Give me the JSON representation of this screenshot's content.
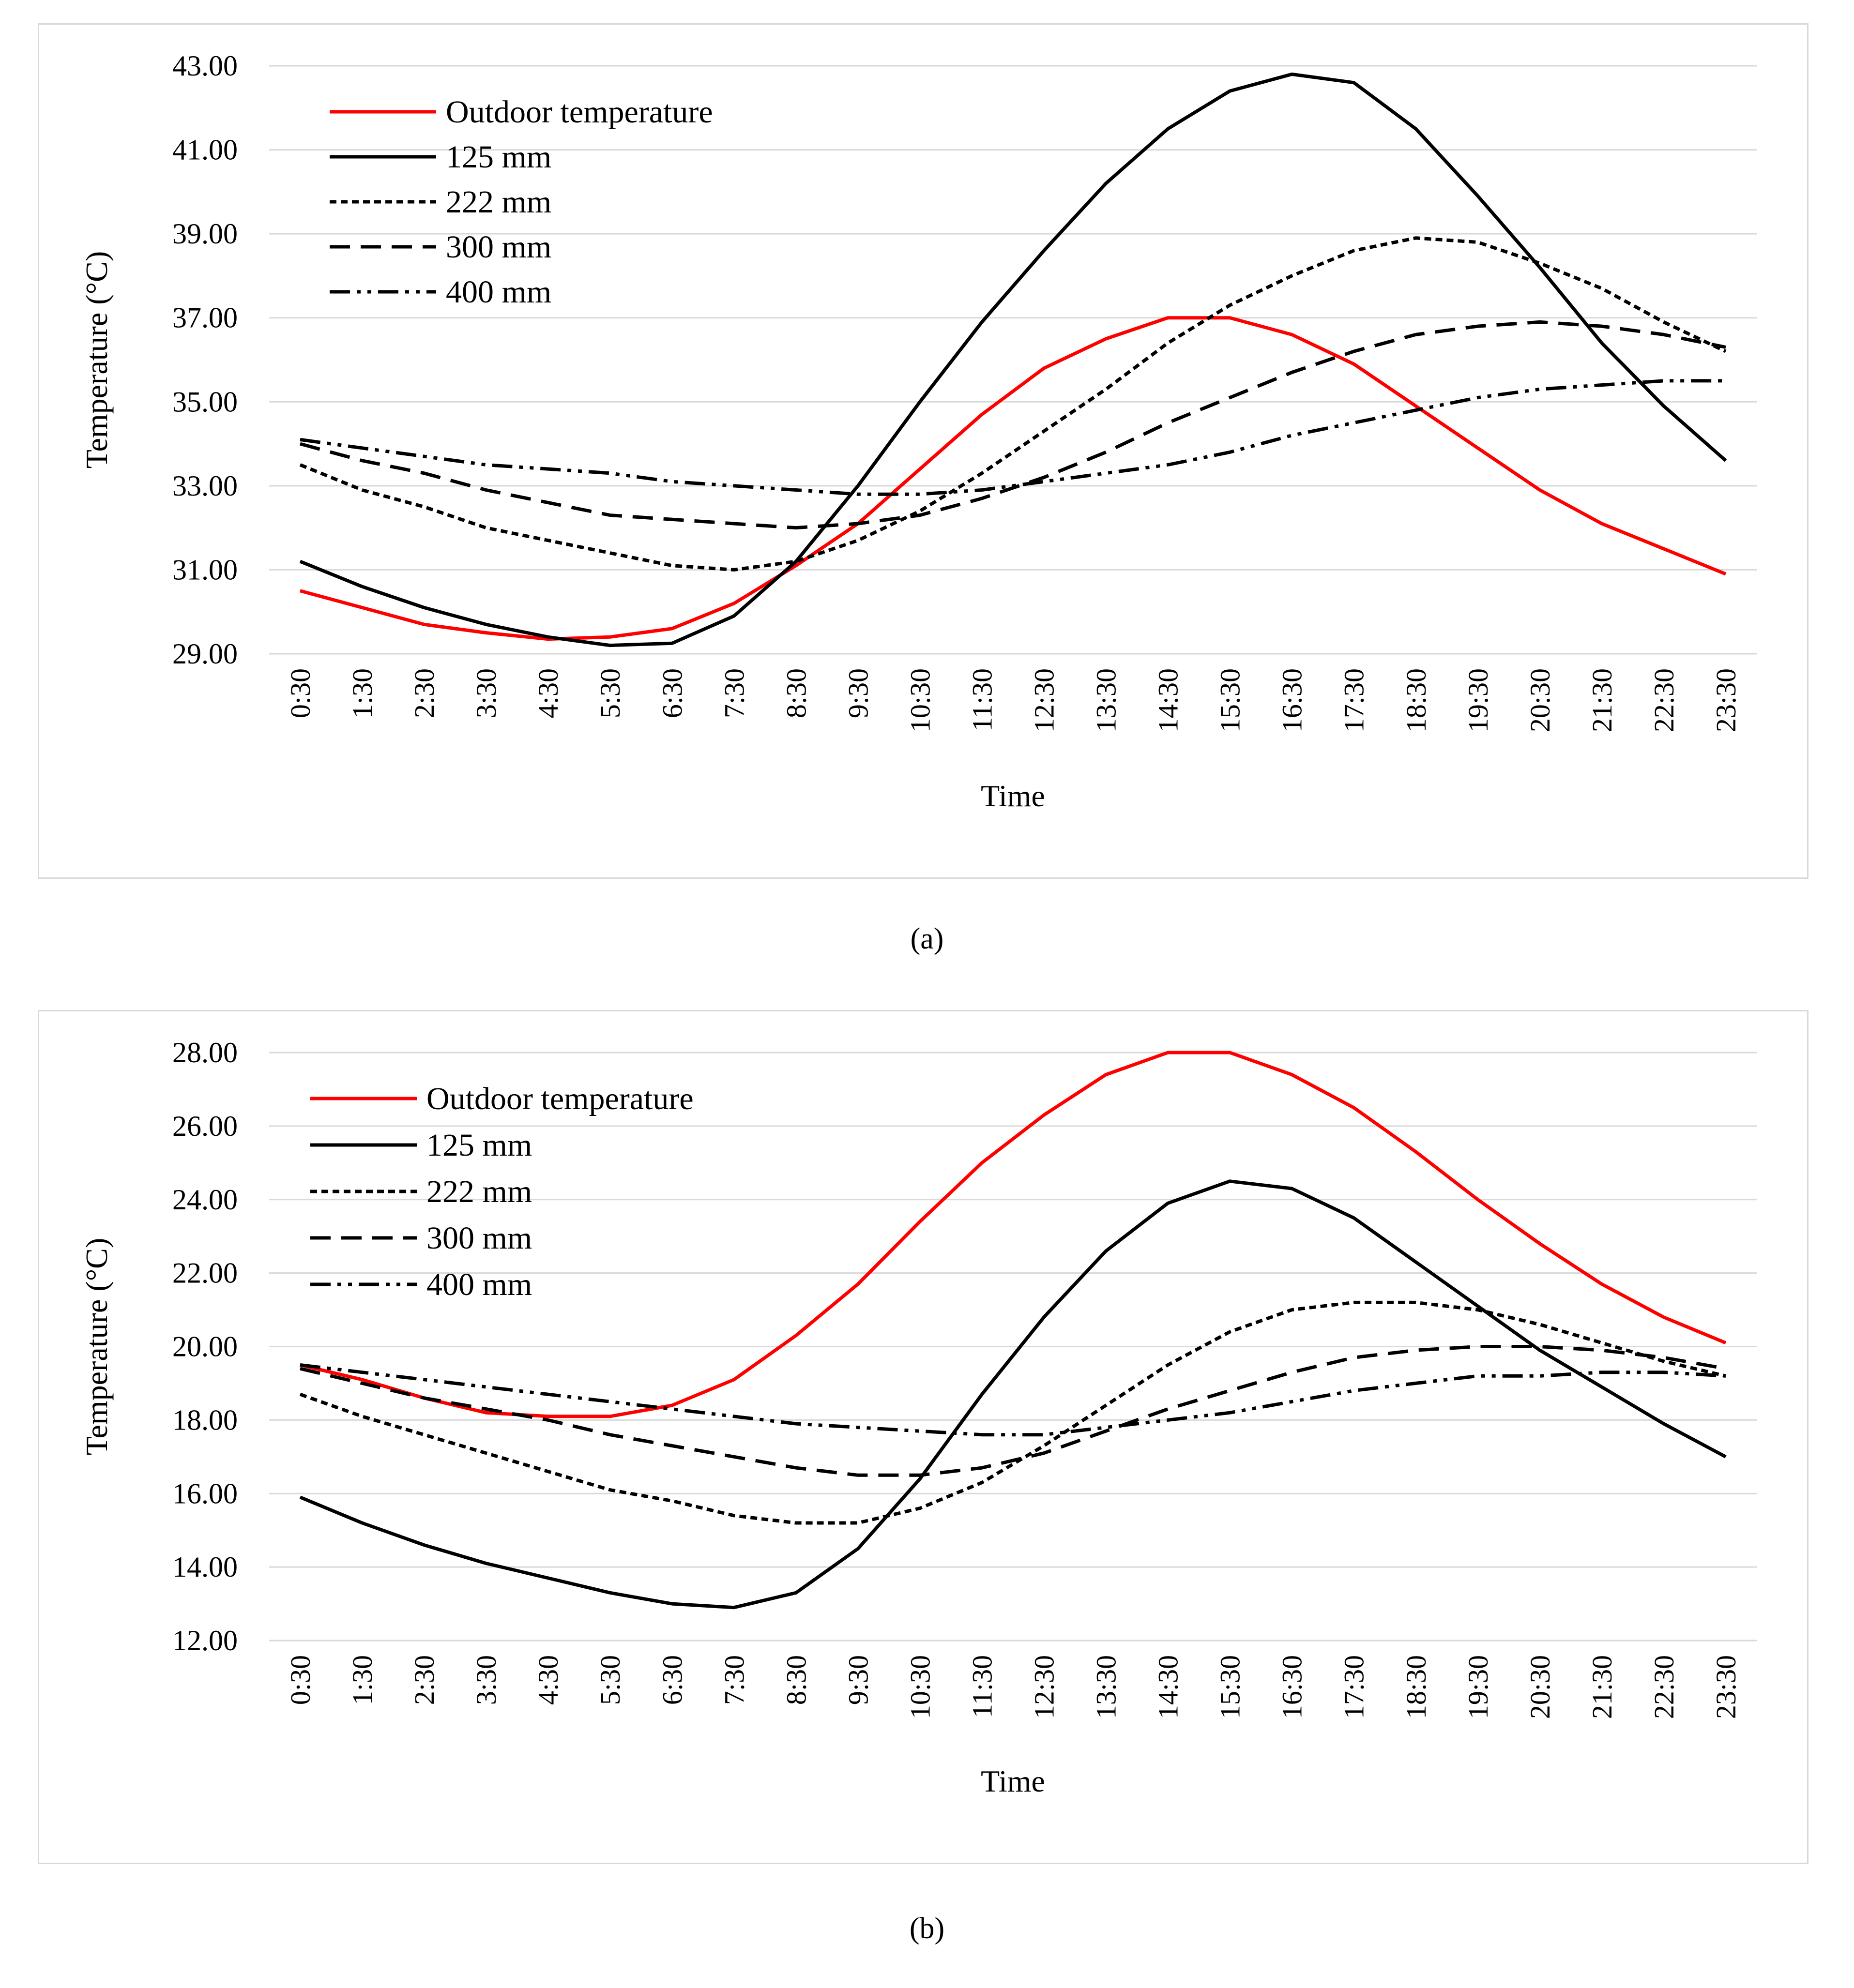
{
  "captions": [
    "(a)",
    "(b)"
  ],
  "colors": {
    "outdoor": "#ff0000",
    "series": "#000000",
    "grid": "#d9d9d9",
    "frame": "#d9d9d9"
  },
  "chart_data": [
    {
      "type": "line",
      "xlabel": "Time",
      "ylabel": "Temperature (°C)",
      "ylim": [
        29,
        43
      ],
      "yticks": [
        29,
        31,
        33,
        35,
        37,
        39,
        41,
        43
      ],
      "grid": true,
      "legend_position": "top-left",
      "categories": [
        "0:30",
        "1:30",
        "2:30",
        "3:30",
        "4:30",
        "5:30",
        "6:30",
        "7:30",
        "8:30",
        "9:30",
        "10:30",
        "11:30",
        "12:30",
        "13:30",
        "14:30",
        "15:30",
        "16:30",
        "17:30",
        "18:30",
        "19:30",
        "20:30",
        "21:30",
        "22:30",
        "23:30"
      ],
      "series": [
        {
          "name": "Outdoor temperature",
          "style": "solid-red",
          "values": [
            30.5,
            30.1,
            29.7,
            29.5,
            29.35,
            29.4,
            29.6,
            30.2,
            31.1,
            32.1,
            33.4,
            34.7,
            35.8,
            36.5,
            37.0,
            37.0,
            36.6,
            35.9,
            34.9,
            33.9,
            32.9,
            32.1,
            31.5,
            30.9
          ]
        },
        {
          "name": "125 mm",
          "style": "solid",
          "values": [
            31.2,
            30.6,
            30.1,
            29.7,
            29.4,
            29.2,
            29.25,
            29.9,
            31.2,
            33.0,
            35.0,
            36.9,
            38.6,
            40.2,
            41.5,
            42.4,
            42.8,
            42.6,
            41.5,
            39.9,
            38.2,
            36.4,
            34.9,
            33.6
          ]
        },
        {
          "name": "222 mm",
          "style": "dotted",
          "values": [
            33.5,
            32.9,
            32.5,
            32.0,
            31.7,
            31.4,
            31.1,
            31.0,
            31.2,
            31.7,
            32.4,
            33.3,
            34.3,
            35.3,
            36.4,
            37.3,
            38.0,
            38.6,
            38.9,
            38.8,
            38.3,
            37.7,
            36.9,
            36.2
          ]
        },
        {
          "name": "300 mm",
          "style": "dash",
          "values": [
            34.0,
            33.6,
            33.3,
            32.9,
            32.6,
            32.3,
            32.2,
            32.1,
            32.0,
            32.1,
            32.3,
            32.7,
            33.2,
            33.8,
            34.5,
            35.1,
            35.7,
            36.2,
            36.6,
            36.8,
            36.9,
            36.8,
            36.6,
            36.3
          ]
        },
        {
          "name": "400 mm",
          "style": "dashdotdot",
          "values": [
            34.1,
            33.9,
            33.7,
            33.5,
            33.4,
            33.3,
            33.1,
            33.0,
            32.9,
            32.8,
            32.8,
            32.9,
            33.1,
            33.3,
            33.5,
            33.8,
            34.2,
            34.5,
            34.8,
            35.1,
            35.3,
            35.4,
            35.5,
            35.5
          ]
        }
      ]
    },
    {
      "type": "line",
      "xlabel": "Time",
      "ylabel": "Temperature (°C)",
      "ylim": [
        12,
        28
      ],
      "yticks": [
        12,
        14,
        16,
        18,
        20,
        22,
        24,
        26,
        28
      ],
      "grid": true,
      "legend_position": "top-left",
      "categories": [
        "0:30",
        "1:30",
        "2:30",
        "3:30",
        "4:30",
        "5:30",
        "6:30",
        "7:30",
        "8:30",
        "9:30",
        "10:30",
        "11:30",
        "12:30",
        "13:30",
        "14:30",
        "15:30",
        "16:30",
        "17:30",
        "18:30",
        "19:30",
        "20:30",
        "21:30",
        "22:30",
        "23:30"
      ],
      "series": [
        {
          "name": "Outdoor temperature",
          "style": "solid-red",
          "values": [
            19.5,
            19.1,
            18.6,
            18.2,
            18.1,
            18.1,
            18.4,
            19.1,
            20.3,
            21.7,
            23.4,
            25.0,
            26.3,
            27.4,
            28.0,
            28.0,
            27.4,
            26.5,
            25.3,
            24.0,
            22.8,
            21.7,
            20.8,
            20.1
          ]
        },
        {
          "name": "125 mm",
          "style": "solid",
          "values": [
            15.9,
            15.2,
            14.6,
            14.1,
            13.7,
            13.3,
            13.0,
            12.9,
            13.3,
            14.5,
            16.4,
            18.7,
            20.8,
            22.6,
            23.9,
            24.5,
            24.3,
            23.5,
            22.3,
            21.1,
            19.9,
            18.9,
            17.9,
            17.0
          ]
        },
        {
          "name": "222 mm",
          "style": "dotted",
          "values": [
            18.7,
            18.1,
            17.6,
            17.1,
            16.6,
            16.1,
            15.8,
            15.4,
            15.2,
            15.2,
            15.6,
            16.3,
            17.3,
            18.4,
            19.5,
            20.4,
            21.0,
            21.2,
            21.2,
            21.0,
            20.6,
            20.1,
            19.6,
            19.2
          ]
        },
        {
          "name": "300 mm",
          "style": "dash",
          "values": [
            19.4,
            19.0,
            18.6,
            18.3,
            18.0,
            17.6,
            17.3,
            17.0,
            16.7,
            16.5,
            16.5,
            16.7,
            17.1,
            17.7,
            18.3,
            18.8,
            19.3,
            19.7,
            19.9,
            20.0,
            20.0,
            19.9,
            19.7,
            19.4
          ]
        },
        {
          "name": "400 mm",
          "style": "dashdotdot",
          "values": [
            19.5,
            19.3,
            19.1,
            18.9,
            18.7,
            18.5,
            18.3,
            18.1,
            17.9,
            17.8,
            17.7,
            17.6,
            17.6,
            17.8,
            18.0,
            18.2,
            18.5,
            18.8,
            19.0,
            19.2,
            19.2,
            19.3,
            19.3,
            19.2
          ]
        }
      ]
    }
  ]
}
